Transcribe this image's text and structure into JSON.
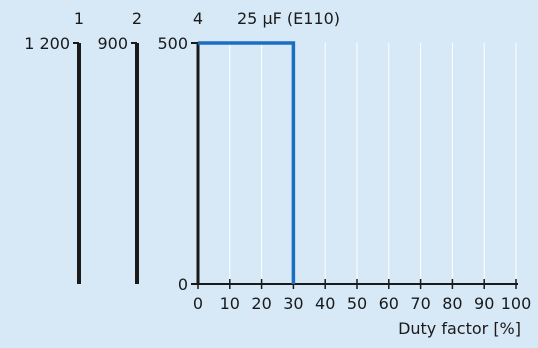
{
  "chart_data": {
    "type": "line",
    "title": "25 µF (E110)",
    "xlabel": "Duty factor [%]",
    "ylabel": "",
    "xlim": [
      0,
      100
    ],
    "ylim": [
      0,
      500
    ],
    "x_ticks": [
      "0",
      "10",
      "20",
      "30",
      "40",
      "50",
      "60",
      "70",
      "80",
      "90",
      "100"
    ],
    "x": [
      0,
      30,
      30
    ],
    "grid": true,
    "series": [
      {
        "name": "",
        "color": "#1a6fc1",
        "values": [
          500,
          500,
          0
        ]
      }
    ],
    "extra_axes": [
      {
        "header": "1",
        "top_label": "1 200"
      },
      {
        "header": "2",
        "top_label": "900"
      },
      {
        "header": "4",
        "top_label": "500",
        "bottom_label": "0"
      }
    ]
  }
}
